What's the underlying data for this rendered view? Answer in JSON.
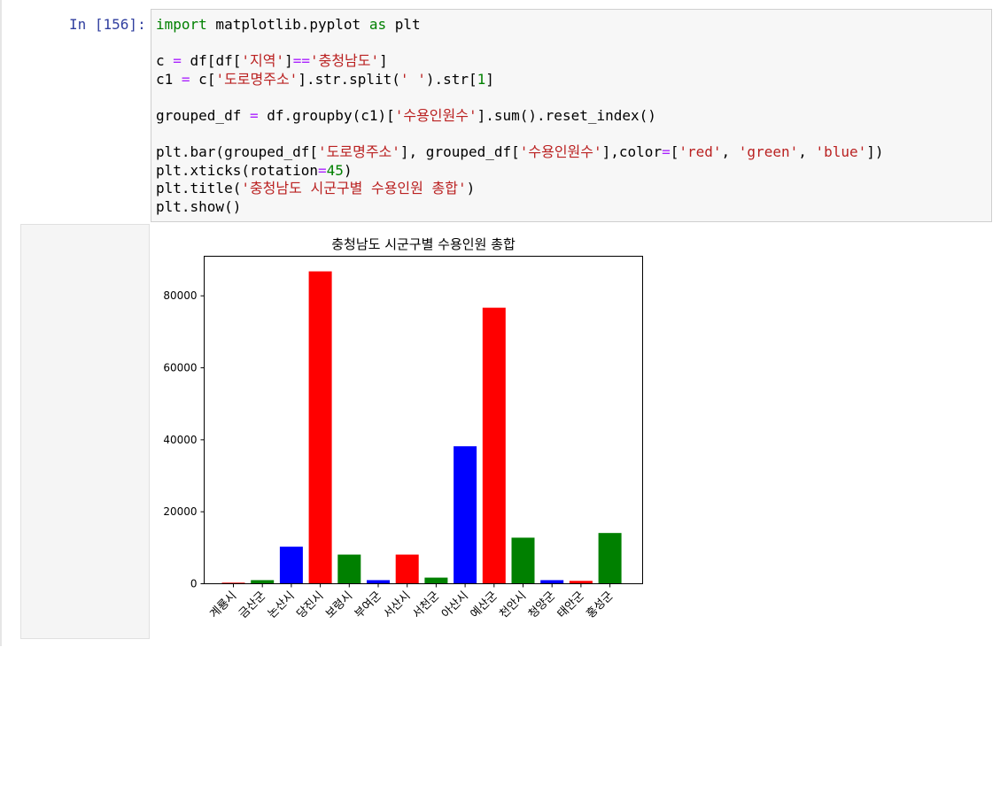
{
  "cell": {
    "prompt": "In [156]:",
    "code_lines": [
      [
        {
          "t": "import",
          "c": "kw"
        },
        {
          "t": " matplotlib.pyplot "
        },
        {
          "t": "as",
          "c": "kw"
        },
        {
          "t": " plt"
        }
      ],
      [],
      [
        {
          "t": "c "
        },
        {
          "t": "=",
          "c": "op"
        },
        {
          "t": " df[df["
        },
        {
          "t": "'지역'",
          "c": "str"
        },
        {
          "t": "]"
        },
        {
          "t": "==",
          "c": "op"
        },
        {
          "t": "'충청남도'",
          "c": "str"
        },
        {
          "t": "]"
        }
      ],
      [
        {
          "t": "c1 "
        },
        {
          "t": "=",
          "c": "op"
        },
        {
          "t": " c["
        },
        {
          "t": "'도로명주소'",
          "c": "str"
        },
        {
          "t": "].str.split("
        },
        {
          "t": "' '",
          "c": "str"
        },
        {
          "t": ").str["
        },
        {
          "t": "1",
          "c": "num"
        },
        {
          "t": "]"
        }
      ],
      [],
      [
        {
          "t": "grouped_df "
        },
        {
          "t": "=",
          "c": "op"
        },
        {
          "t": " df.groupby(c1)["
        },
        {
          "t": "'수용인원수'",
          "c": "str"
        },
        {
          "t": "].sum().reset_index()"
        }
      ],
      [],
      [
        {
          "t": "plt.bar(grouped_df["
        },
        {
          "t": "'도로명주소'",
          "c": "str"
        },
        {
          "t": "], grouped_df["
        },
        {
          "t": "'수용인원수'",
          "c": "str"
        },
        {
          "t": "],color"
        },
        {
          "t": "=",
          "c": "op"
        },
        {
          "t": "["
        },
        {
          "t": "'red'",
          "c": "str"
        },
        {
          "t": ", "
        },
        {
          "t": "'green'",
          "c": "str"
        },
        {
          "t": ", "
        },
        {
          "t": "'blue'",
          "c": "str"
        },
        {
          "t": "])"
        }
      ],
      [
        {
          "t": "plt.xticks(rotation"
        },
        {
          "t": "=",
          "c": "op"
        },
        {
          "t": "45",
          "c": "num"
        },
        {
          "t": ")"
        }
      ],
      [
        {
          "t": "plt.title("
        },
        {
          "t": "'충청남도 시군구별 수용인원 총합'",
          "c": "str"
        },
        {
          "t": ")"
        }
      ],
      [
        {
          "t": "plt.show()"
        }
      ]
    ]
  },
  "colors": {
    "red": "#ff0000",
    "green": "#008000",
    "blue": "#0000ff"
  },
  "chart_data": {
    "type": "bar",
    "title": "충청남도 시군구별 수용인원 총합",
    "xlabel": "",
    "ylabel": "",
    "categories": [
      "계룡시",
      "금산군",
      "논산시",
      "당진시",
      "보령시",
      "부여군",
      "서산시",
      "서천군",
      "아산시",
      "예산군",
      "천안시",
      "청양군",
      "태안군",
      "홍성군"
    ],
    "values": [
      300,
      1000,
      10300,
      86800,
      8100,
      1000,
      8100,
      1700,
      38200,
      76700,
      12800,
      1000,
      800,
      14100
    ],
    "bar_colors": [
      "red",
      "green",
      "blue",
      "red",
      "green",
      "blue",
      "red",
      "green",
      "blue",
      "red",
      "green",
      "blue",
      "red",
      "green"
    ],
    "yticks": [
      0,
      20000,
      40000,
      60000,
      80000
    ],
    "ytick_labels": [
      "0",
      "20000",
      "40000",
      "60000",
      "80000"
    ],
    "ylim": [
      0,
      91000
    ],
    "xtick_rotation": 45,
    "grid": false,
    "legend": "none"
  }
}
